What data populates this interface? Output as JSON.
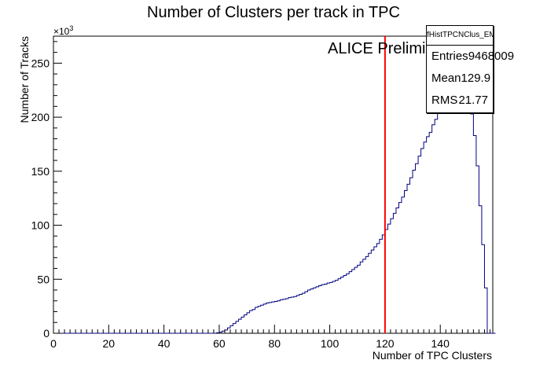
{
  "chart_data": {
    "type": "histogram",
    "title": "Number of Clusters per track in TPC",
    "xlabel": "Number of TPC Clusters",
    "ylabel": "Number of Tracks",
    "y_exponent_label": "×10",
    "y_exponent_power": "3",
    "annotation": "ALICE Preliminary",
    "xlim": [
      0,
      159
    ],
    "ylim": [
      0,
      275
    ],
    "x_ticks": [
      0,
      20,
      40,
      60,
      80,
      100,
      120,
      140
    ],
    "y_ticks": [
      0,
      50,
      100,
      150,
      200,
      250
    ],
    "bin_width": 1,
    "cut_line_x": 120,
    "colors": {
      "histogram": "#000080",
      "cut_line": "#ff0000"
    },
    "series": [
      {
        "name": "fHistTPCNClus_EMCEGA",
        "x_start": 0,
        "values": [
          0,
          0,
          0,
          0,
          0,
          0,
          0,
          0,
          0,
          0,
          0,
          0,
          0,
          0,
          0,
          0,
          0,
          0,
          0,
          0,
          0,
          0,
          0,
          0,
          0,
          0,
          0,
          0,
          0,
          0,
          0,
          0,
          0,
          0,
          0,
          0,
          0,
          0,
          0,
          0,
          0,
          0,
          0,
          0,
          0,
          0,
          0,
          0,
          0,
          0,
          0,
          0,
          0,
          0,
          0,
          0,
          0,
          0,
          0,
          0.5,
          1,
          2,
          3,
          5,
          7,
          9,
          11,
          13,
          15,
          17,
          19,
          21,
          22,
          24,
          25,
          26,
          27,
          28,
          28.5,
          29,
          29.5,
          30,
          31,
          31.5,
          32,
          33,
          33.5,
          34,
          35,
          36,
          37,
          38.5,
          40,
          41,
          42,
          43,
          44,
          45,
          45.5,
          46.5,
          47,
          48,
          49,
          50.5,
          52,
          53.5,
          55,
          57,
          59,
          61,
          63,
          66,
          68.5,
          71,
          74,
          77,
          80,
          83,
          87,
          91,
          96,
          101,
          106,
          111,
          116,
          121,
          126,
          132,
          138,
          144,
          151,
          157,
          164,
          171,
          177,
          182,
          186,
          193,
          198,
          205,
          210,
          220,
          222,
          223,
          222,
          220,
          218,
          216,
          212,
          208,
          205,
          203,
          183,
          155,
          118,
          82,
          42,
          0,
          0,
          0
        ]
      }
    ],
    "stats": {
      "title": "fHistTPCNClus_EMCEGA",
      "entries_label": "Entries",
      "entries_value": "9468009",
      "mean_label": "Mean",
      "mean_value": "129.9",
      "rms_label": "RMS",
      "rms_value": "21.77"
    }
  }
}
